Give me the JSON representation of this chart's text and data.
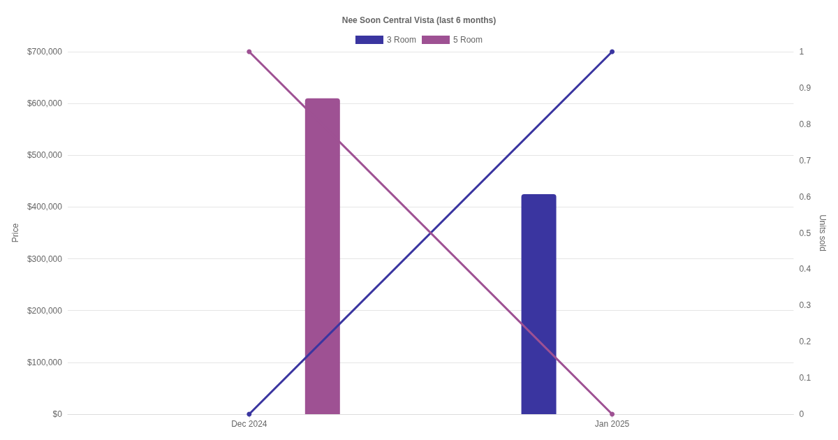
{
  "chart_data": {
    "type": "bar",
    "title": "Nee Soon Central Vista (last 6 months)",
    "ylabel": "Price",
    "y2label": "Units sold",
    "categories": [
      "Dec 2024",
      "Jan 2025"
    ],
    "series": [
      {
        "name": "3 Room",
        "color": "#3a35a0",
        "values": [
          null,
          425000
        ]
      },
      {
        "name": "5 Room",
        "color": "#9e5193",
        "values": [
          610000,
          null
        ]
      },
      {
        "type": "line",
        "axis": "y2",
        "color": "#3a35a0",
        "values": [
          0,
          1
        ]
      },
      {
        "type": "line",
        "axis": "y2",
        "color": "#9e5193",
        "values": [
          1,
          0
        ]
      }
    ],
    "ylim": [
      0,
      700000
    ],
    "yticks": [
      {
        "value": 0,
        "label": "$0"
      },
      {
        "value": 100000,
        "label": "$100,000"
      },
      {
        "value": 200000,
        "label": "$200,000"
      },
      {
        "value": 300000,
        "label": "$300,000"
      },
      {
        "value": 400000,
        "label": "$400,000"
      },
      {
        "value": 500000,
        "label": "$500,000"
      },
      {
        "value": 600000,
        "label": "$600,000"
      },
      {
        "value": 700000,
        "label": "$700,000"
      }
    ],
    "y2lim": [
      0,
      1
    ],
    "y2ticks": [
      0,
      0.1,
      0.2,
      0.3,
      0.4,
      0.5,
      0.6,
      0.7,
      0.8,
      0.9,
      1
    ],
    "grid": "y",
    "legend": "top",
    "marker": "circle"
  }
}
